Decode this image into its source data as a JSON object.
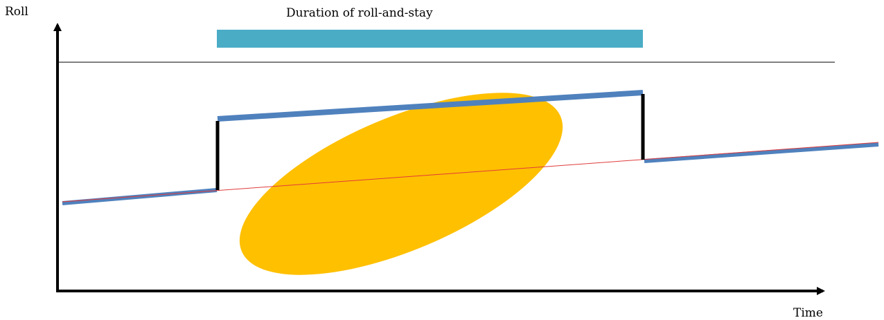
{
  "labels": {
    "y_axis": "Roll",
    "x_axis": "Time",
    "duration": "Duration of roll-and-stay"
  },
  "colors": {
    "duration_bar": "#4bacc6",
    "roll_path": "#4f81bd",
    "trend_line": "#e03a3a",
    "roll_jump": "#000000",
    "highlight_ellipse": "#ffc000",
    "axis": "#000000"
  }
}
